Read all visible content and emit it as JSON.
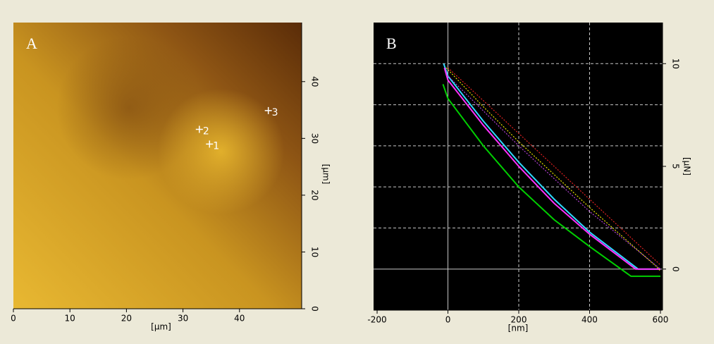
{
  "chart_data": [
    {
      "type": "scatter",
      "panel_label": "A",
      "x_label": "[µm]",
      "y_label": "[µm]",
      "xlim": [
        0,
        51
      ],
      "ylim": [
        0,
        50.4
      ],
      "xticks": [
        0,
        10,
        20,
        30,
        40
      ],
      "yticks": [
        0,
        10,
        20,
        30,
        40
      ],
      "x": [
        34.7,
        32.9,
        45.1
      ],
      "y": [
        29.0,
        31.6,
        34.9
      ],
      "labels": [
        "1",
        "2",
        "3"
      ],
      "color": "#ffffff"
    },
    {
      "type": "line",
      "panel_label": "B",
      "x_label": "[nm]",
      "y_label": "[µN]",
      "xlim": [
        -210,
        606
      ],
      "ylim": [
        -2,
        12
      ],
      "xticks": [
        -200,
        0,
        200,
        400,
        600
      ],
      "yticks": [
        0,
        5,
        10
      ],
      "xgrid": [
        0,
        200,
        400
      ],
      "ygrid": [
        0,
        2,
        4,
        6,
        8,
        10
      ],
      "grid": true,
      "series": [
        {
          "color": "#00d000",
          "style": "solid",
          "x": [
            -14,
            0,
            100,
            200,
            300,
            400,
            517,
            600
          ],
          "values": [
            9.0,
            8.3,
            6.0,
            4.0,
            2.4,
            1.1,
            -0.35,
            -0.35
          ]
        },
        {
          "color": "#30d8ff",
          "style": "solid",
          "x": [
            -12,
            0,
            100,
            200,
            300,
            400,
            537,
            600
          ],
          "values": [
            10,
            9.4,
            7.2,
            5.2,
            3.4,
            1.8,
            0,
            0
          ]
        },
        {
          "color": "#ff30ff",
          "style": "solid",
          "x": [
            -10,
            0,
            100,
            200,
            300,
            400,
            530,
            600
          ],
          "values": [
            9.8,
            9.2,
            7.0,
            5.0,
            3.2,
            1.7,
            0,
            0
          ]
        },
        {
          "color": "#e8e000",
          "style": "dotted",
          "x": [
            -5,
            100,
            200,
            300,
            400,
            590,
            600
          ],
          "values": [
            9.8,
            7.9,
            6.2,
            4.6,
            3.0,
            0.1,
            -0.1
          ]
        },
        {
          "color": "#e02020",
          "style": "dotted",
          "x": [
            0,
            200,
            400,
            600
          ],
          "values": [
            9.8,
            6.6,
            3.4,
            0.2
          ]
        },
        {
          "color": "#b040d0",
          "style": "dotted",
          "x": [
            0,
            200,
            400,
            600
          ],
          "values": [
            9.4,
            6.0,
            2.8,
            0.0
          ]
        }
      ]
    }
  ]
}
